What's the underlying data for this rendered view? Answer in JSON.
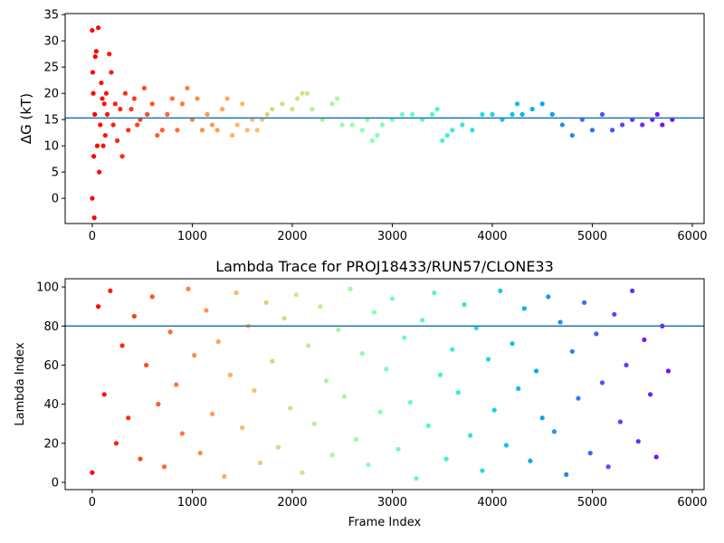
{
  "chart_data": [
    {
      "type": "scatter",
      "ylabel": "ΔG (kT)",
      "colormap": "rainbow_r",
      "hline": 15.3,
      "hline_color": "#1f77b4",
      "xlim": [
        -271,
        6118
      ],
      "ylim": [
        -4.8,
        35.2
      ],
      "xticks": [
        0,
        1000,
        2000,
        3000,
        4000,
        5000,
        6000
      ],
      "yticks": [
        0,
        5,
        10,
        15,
        20,
        25,
        30,
        35
      ],
      "x": [
        0,
        0,
        5,
        10,
        15,
        20,
        25,
        30,
        40,
        50,
        60,
        70,
        80,
        90,
        100,
        110,
        120,
        130,
        140,
        150,
        170,
        190,
        210,
        230,
        250,
        280,
        300,
        330,
        360,
        390,
        420,
        450,
        480,
        520,
        550,
        600,
        650,
        700,
        750,
        800,
        850,
        900,
        950,
        1000,
        1050,
        1100,
        1150,
        1200,
        1250,
        1300,
        1350,
        1400,
        1450,
        1500,
        1550,
        1600,
        1650,
        1700,
        1750,
        1800,
        1900,
        2000,
        2050,
        2100,
        2150,
        2200,
        2300,
        2400,
        2450,
        2500,
        2600,
        2700,
        2750,
        2800,
        2850,
        2900,
        3000,
        3100,
        3200,
        3300,
        3400,
        3450,
        3500,
        3550,
        3600,
        3700,
        3800,
        3900,
        4000,
        4100,
        4200,
        4250,
        4300,
        4400,
        4500,
        4600,
        4700,
        4800,
        4900,
        5000,
        5100,
        5200,
        5300,
        5400,
        5500,
        5600,
        5650,
        5700,
        5800
      ],
      "values": [
        32,
        0,
        24,
        20,
        8,
        -3.7,
        16,
        27,
        28,
        10,
        32.5,
        5,
        14,
        22,
        19,
        10,
        18,
        12,
        20,
        16,
        27.5,
        24,
        14,
        18,
        11,
        17,
        8,
        20,
        13,
        17,
        19,
        14,
        15,
        21,
        16,
        18,
        12,
        13,
        16,
        19,
        13,
        18,
        21,
        15,
        19,
        13,
        16,
        14,
        13,
        17,
        19,
        12,
        14,
        18,
        13,
        15,
        13,
        15,
        16,
        17,
        18,
        17,
        19,
        20,
        20,
        17,
        15,
        18,
        19,
        14,
        14,
        13,
        15,
        11,
        12,
        14,
        15,
        16,
        16,
        15,
        16,
        17,
        11,
        12,
        13,
        14,
        13,
        16,
        16,
        15,
        16,
        18,
        16,
        17,
        18,
        16,
        14,
        12,
        15,
        13,
        16,
        13,
        14,
        15,
        14,
        15,
        16,
        14,
        15
      ]
    },
    {
      "type": "scatter",
      "title": "Lambda Trace for PROJ18433/RUN57/CLONE33",
      "xlabel": "Frame Index",
      "ylabel": "Lambda Index",
      "colormap": "rainbow_r",
      "hline": 80,
      "hline_color": "#1f77b4",
      "xlim": [
        -271,
        6118
      ],
      "ylim": [
        -3.7,
        104.2
      ],
      "xticks": [
        0,
        1000,
        2000,
        3000,
        4000,
        5000,
        6000
      ],
      "yticks": [
        0,
        20,
        40,
        60,
        80,
        100
      ],
      "x": [
        0,
        60,
        120,
        180,
        240,
        300,
        360,
        420,
        480,
        540,
        600,
        660,
        720,
        780,
        840,
        900,
        960,
        1020,
        1080,
        1140,
        1200,
        1260,
        1320,
        1380,
        1440,
        1500,
        1560,
        1620,
        1680,
        1740,
        1800,
        1860,
        1920,
        1980,
        2040,
        2100,
        2160,
        2220,
        2280,
        2340,
        2400,
        2460,
        2520,
        2580,
        2640,
        2700,
        2760,
        2820,
        2880,
        2940,
        3000,
        3060,
        3120,
        3180,
        3240,
        3300,
        3360,
        3420,
        3480,
        3540,
        3600,
        3660,
        3720,
        3780,
        3840,
        3900,
        3960,
        4020,
        4080,
        4140,
        4200,
        4260,
        4320,
        4380,
        4440,
        4500,
        4560,
        4620,
        4680,
        4740,
        4800,
        4860,
        4920,
        4980,
        5040,
        5100,
        5160,
        5220,
        5280,
        5340,
        5400,
        5460,
        5520,
        5580,
        5640,
        5700,
        5760
      ],
      "values": [
        5,
        90,
        45,
        98,
        20,
        70,
        33,
        85,
        12,
        60,
        95,
        40,
        8,
        77,
        50,
        25,
        99,
        65,
        15,
        88,
        35,
        72,
        3,
        55,
        97,
        28,
        80,
        47,
        10,
        92,
        62,
        18,
        84,
        38,
        96,
        5,
        70,
        30,
        90,
        52,
        14,
        78,
        44,
        99,
        22,
        66,
        9,
        87,
        36,
        58,
        94,
        17,
        74,
        41,
        2,
        83,
        29,
        97,
        55,
        12,
        68,
        46,
        91,
        24,
        79,
        6,
        63,
        37,
        98,
        19,
        71,
        48,
        89,
        11,
        57,
        33,
        95,
        26,
        82,
        4,
        67,
        43,
        92,
        15,
        76,
        51,
        8,
        86,
        31,
        60,
        98,
        21,
        73,
        45,
        13,
        80,
        57
      ]
    }
  ]
}
